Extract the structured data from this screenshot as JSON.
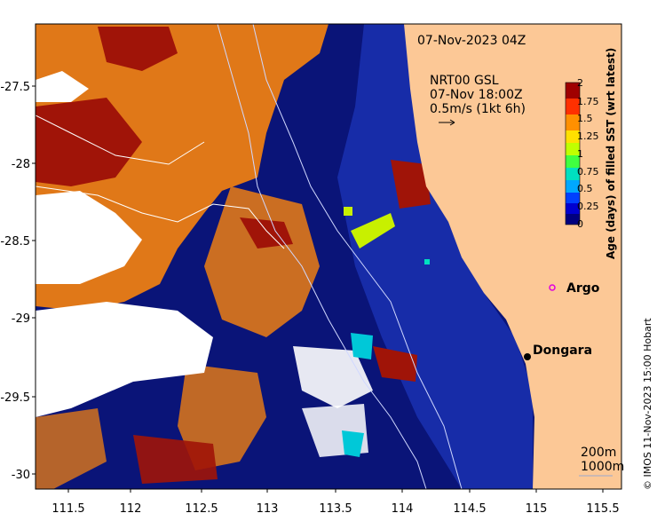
{
  "map": {
    "date_label": "07-Nov-2023 04Z",
    "product_label": "NRT00 GSL",
    "current_time_label": "07-Nov 18:00Z",
    "vector_scale_label": "0.5m/s (1kt 6h)",
    "colorbar": {
      "title": "Age (days) of filled SST (wrt latest)",
      "ticks": [
        "2",
        "1.75",
        "1.5",
        "1.25",
        "1",
        "0.75",
        "0.5",
        "0.25",
        "0"
      ],
      "colors": [
        "#00007f",
        "#0000d0",
        "#0040ff",
        "#00a8ff",
        "#00e0c0",
        "#40ff40",
        "#c0ff00",
        "#ffe000",
        "#ff9000",
        "#ff3000",
        "#a00000"
      ]
    },
    "x_ticks": [
      "111.5",
      "112",
      "112.5",
      "113",
      "113.5",
      "114",
      "114.5",
      "115",
      "115.5"
    ],
    "y_ticks": [
      "-27.5",
      "-28",
      "-28.5",
      "-29",
      "-29.5",
      "-30"
    ],
    "places": [
      {
        "name": "Argo",
        "symbol": "magenta-circle"
      },
      {
        "name": "Dongara",
        "symbol": "black-dot"
      }
    ],
    "depth_legend": [
      "200m",
      "1000m"
    ],
    "credit": "© IMOS 11-Nov-2023 15:00 Hobart",
    "colors": {
      "land": "#fcc896",
      "ocean_recent": "#0a1478",
      "ocean_deep": "#1028a0",
      "age_orange": "#e07818",
      "age_red": "#a01408",
      "no_data": "#ffffff"
    }
  }
}
